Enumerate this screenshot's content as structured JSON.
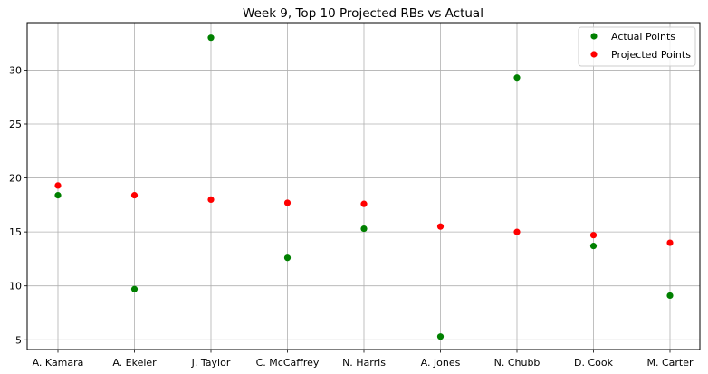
{
  "chart_data": {
    "type": "scatter",
    "title": "Week 9, Top 10 Projected RBs vs Actual",
    "xlabel": "",
    "ylabel": "",
    "categories": [
      "A. Kamara",
      "A. Ekeler",
      "J. Taylor",
      "C. McCaffrey",
      "N. Harris",
      "A. Jones",
      "N. Chubb",
      "D. Cook",
      "M. Carter"
    ],
    "ylim": [
      4.1,
      34.4
    ],
    "yticks": [
      5,
      10,
      15,
      20,
      25,
      30
    ],
    "grid": true,
    "legend_position": "top-right",
    "series": [
      {
        "name": "Actual Points",
        "color": "#008000",
        "values": [
          18.4,
          9.7,
          33.0,
          12.6,
          15.3,
          5.3,
          29.3,
          13.7,
          9.1
        ]
      },
      {
        "name": "Projected Points",
        "color": "#ff0000",
        "values": [
          19.3,
          18.4,
          18.0,
          17.7,
          17.6,
          15.5,
          15.0,
          14.7,
          14.0
        ]
      }
    ]
  }
}
